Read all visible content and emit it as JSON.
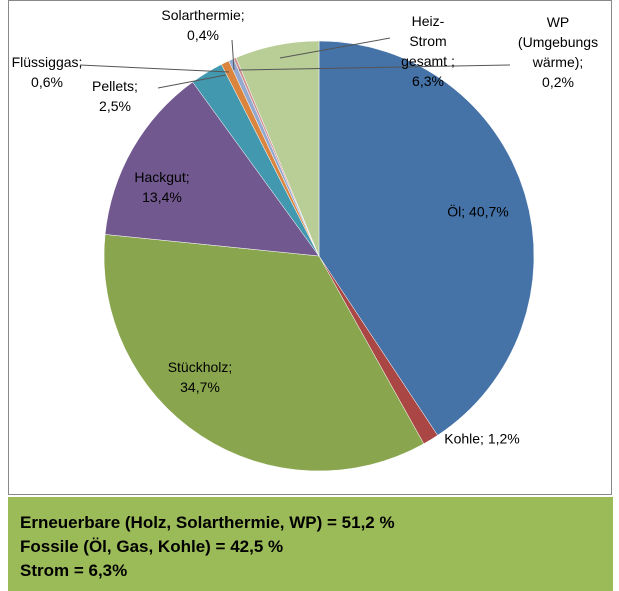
{
  "chart_data": {
    "type": "pie",
    "labels": [
      "Öl; 40,7%",
      "Kohle; 1,2%",
      "Stückholz;\n34,7%",
      "Hackgut;\n13,4%",
      "Pellets;\n2,5%",
      "Flüssiggas;\n0,6%",
      "Solarthermie;\n0,4%",
      "WP\n(Umgebungs\nwärme);\n0,2%",
      "Heiz-\nStrom\ngesamt ;\n6,3%"
    ],
    "values": [
      40.7,
      1.2,
      34.7,
      13.4,
      2.5,
      0.6,
      0.4,
      0.2,
      6.3
    ],
    "colors": [
      "#4572a7",
      "#aa4643",
      "#89a54e",
      "#71588f",
      "#4198af",
      "#db843d",
      "#93a9cf",
      "#d19392",
      "#b9cd96"
    ]
  },
  "footer": {
    "lines": [
      "Erneuerbare (Holz, Solarthermie, WP) = 51,2 %",
      "Fossile (Öl, Gas, Kohle) = 42,5 %",
      "Strom = 6,3%"
    ]
  }
}
